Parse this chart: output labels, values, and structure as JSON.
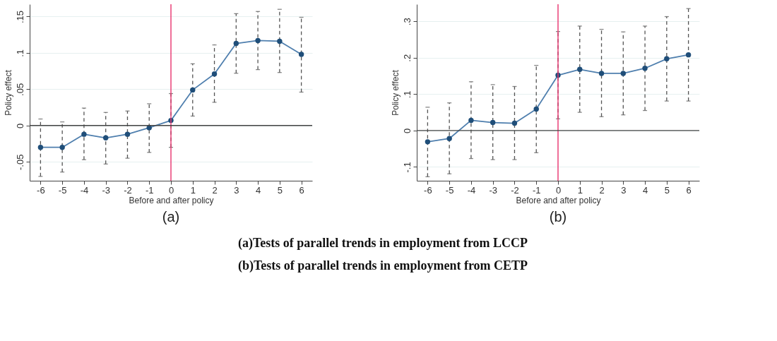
{
  "chart_data": [
    {
      "type": "line",
      "xlabel": "Before and after policy",
      "ylabel": "Policy effect",
      "x": [
        -6,
        -5,
        -4,
        -3,
        -2,
        -1,
        0,
        1,
        2,
        3,
        4,
        5,
        6
      ],
      "series": [
        {
          "color": "#1f4e79",
          "values": [
            -0.03,
            -0.03,
            -0.012,
            -0.017,
            -0.012,
            -0.003,
            0.007,
            0.049,
            0.071,
            0.113,
            0.117,
            0.116,
            0.098
          ],
          "errors": [
            [
              -0.07,
              0.009
            ],
            [
              -0.064,
              0.005
            ],
            [
              -0.047,
              0.024
            ],
            [
              -0.053,
              0.018
            ],
            [
              -0.045,
              0.02
            ],
            [
              -0.037,
              0.03
            ],
            [
              -0.03,
              0.044
            ],
            [
              0.013,
              0.085
            ],
            [
              0.032,
              0.111
            ],
            [
              0.072,
              0.154
            ],
            [
              0.077,
              0.157
            ],
            [
              0.073,
              0.16
            ],
            [
              0.046,
              0.149
            ]
          ]
        }
      ],
      "xlim": [
        -6.5,
        6.5
      ],
      "xticks": [
        -6,
        -5,
        -4,
        -3,
        -2,
        -1,
        0,
        1,
        2,
        3,
        4,
        5,
        6
      ],
      "ylim": [
        -0.076,
        0.167
      ],
      "yticks": [
        {
          "value": -0.05,
          "label": "-.05"
        },
        0,
        {
          "value": 0.05,
          "label": ".05"
        },
        {
          "value": 0.1,
          "label": ".1"
        },
        {
          "value": 0.15,
          "label": ".15"
        }
      ],
      "ref_lines": [
        {
          "axis": "x",
          "value": 0,
          "color": "#e8336e"
        },
        {
          "axis": "y",
          "value": 0,
          "color": "#444444"
        }
      ],
      "grid": "y",
      "marker": "circle",
      "line_style": "solid",
      "annotations": [
        "(a)",
        "(a)Tests of parallel trends in employment from LCCP"
      ]
    },
    {
      "type": "line",
      "xlabel": "Before and after policy",
      "ylabel": "Policy effect",
      "x": [
        -6,
        -5,
        -4,
        -3,
        -2,
        -1,
        0,
        1,
        2,
        3,
        4,
        5,
        6
      ],
      "series": [
        {
          "color": "#1f4e79",
          "values": [
            -0.031,
            -0.022,
            0.028,
            0.022,
            0.02,
            0.059,
            0.152,
            0.168,
            0.157,
            0.157,
            0.171,
            0.197,
            0.208
          ],
          "errors": [
            [
              -0.127,
              0.064
            ],
            [
              -0.119,
              0.076
            ],
            [
              -0.077,
              0.134
            ],
            [
              -0.08,
              0.126
            ],
            [
              -0.08,
              0.121
            ],
            [
              -0.061,
              0.179
            ],
            [
              0.032,
              0.272
            ],
            [
              0.05,
              0.287
            ],
            [
              0.038,
              0.278
            ],
            [
              0.043,
              0.271
            ],
            [
              0.055,
              0.287
            ],
            [
              0.081,
              0.313
            ],
            [
              0.081,
              0.335
            ]
          ]
        }
      ],
      "xlim": [
        -6.5,
        6.5
      ],
      "xticks": [
        -6,
        -5,
        -4,
        -3,
        -2,
        -1,
        0,
        1,
        2,
        3,
        4,
        5,
        6
      ],
      "ylim": [
        -0.138,
        0.347
      ],
      "yticks": [
        {
          "value": -0.1,
          "label": "-.1"
        },
        0,
        {
          "value": 0.1,
          "label": ".1"
        },
        {
          "value": 0.2,
          "label": ".2"
        },
        {
          "value": 0.3,
          "label": ".3"
        }
      ],
      "ref_lines": [
        {
          "axis": "x",
          "value": 0,
          "color": "#e8336e"
        },
        {
          "axis": "y",
          "value": 0,
          "color": "#444444"
        }
      ],
      "grid": "y",
      "marker": "circle",
      "line_style": "solid",
      "annotations": [
        "(b)",
        "(b)Tests of parallel trends in employment from CETP"
      ]
    }
  ]
}
